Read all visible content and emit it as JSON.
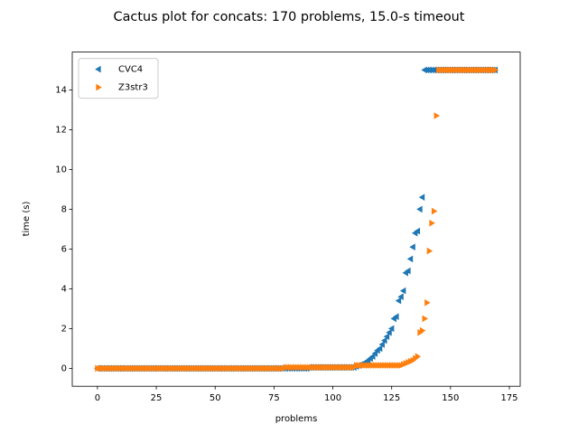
{
  "chart_data": {
    "type": "scatter",
    "title": "Cactus plot for concats: 170 problems, 15.0-s timeout",
    "x_label": "problems",
    "y_label": "time (s)",
    "x": [
      0,
      1,
      2,
      3,
      4,
      5,
      6,
      7,
      8,
      9,
      10,
      11,
      12,
      13,
      14,
      15,
      16,
      17,
      18,
      19,
      20,
      21,
      22,
      23,
      24,
      25,
      26,
      27,
      28,
      29,
      30,
      31,
      32,
      33,
      34,
      35,
      36,
      37,
      38,
      39,
      40,
      41,
      42,
      43,
      44,
      45,
      46,
      47,
      48,
      49,
      50,
      51,
      52,
      53,
      54,
      55,
      56,
      57,
      58,
      59,
      60,
      61,
      62,
      63,
      64,
      65,
      66,
      67,
      68,
      69,
      70,
      71,
      72,
      73,
      74,
      75,
      76,
      77,
      78,
      79,
      80,
      81,
      82,
      83,
      84,
      85,
      86,
      87,
      88,
      89,
      90,
      91,
      92,
      93,
      94,
      95,
      96,
      97,
      98,
      99,
      100,
      101,
      102,
      103,
      104,
      105,
      106,
      107,
      108,
      109,
      110,
      111,
      112,
      113,
      114,
      115,
      116,
      117,
      118,
      119,
      120,
      121,
      122,
      123,
      124,
      125,
      126,
      127,
      128,
      129,
      130,
      131,
      132,
      133,
      134,
      135,
      136,
      137,
      138,
      139,
      140,
      141,
      142,
      143,
      144,
      145,
      146,
      147,
      148,
      149,
      150,
      151,
      152,
      153,
      154,
      155,
      156,
      157,
      158,
      159,
      160,
      161,
      162,
      163,
      164,
      165,
      166,
      167,
      168,
      169
    ],
    "series": [
      {
        "name": "CVC4",
        "color": "#1f77b4",
        "marker": "<",
        "values": [
          0,
          0,
          0,
          0,
          0,
          0,
          0,
          0,
          0,
          0,
          0,
          0,
          0,
          0,
          0,
          0,
          0,
          0,
          0,
          0,
          0,
          0,
          0,
          0,
          0,
          0,
          0,
          0,
          0,
          0,
          0,
          0,
          0,
          0,
          0,
          0,
          0,
          0,
          0,
          0,
          0,
          0,
          0,
          0,
          0,
          0,
          0,
          0,
          0,
          0,
          0,
          0,
          0,
          0,
          0,
          0,
          0,
          0,
          0,
          0,
          0,
          0,
          0,
          0,
          0,
          0,
          0,
          0,
          0,
          0,
          0,
          0,
          0,
          0,
          0,
          0,
          0,
          0,
          0,
          0,
          0,
          0,
          0,
          0,
          0,
          0,
          0,
          0,
          0,
          0,
          0.05,
          0.05,
          0.05,
          0.05,
          0.05,
          0.05,
          0.05,
          0.05,
          0.05,
          0.05,
          0.05,
          0.05,
          0.05,
          0.05,
          0.05,
          0.05,
          0.05,
          0.05,
          0.05,
          0.05,
          0.1,
          0.15,
          0.2,
          0.25,
          0.3,
          0.4,
          0.5,
          0.6,
          0.75,
          0.9,
          1.0,
          1.2,
          1.4,
          1.6,
          1.8,
          2.0,
          2.5,
          2.6,
          3.4,
          3.6,
          3.9,
          4.8,
          4.9,
          5.5,
          6.1,
          6.8,
          6.9,
          8.0,
          8.6,
          15,
          15,
          15,
          15,
          15,
          15,
          15,
          15,
          15,
          15,
          15,
          15,
          15,
          15,
          15,
          15,
          15,
          15,
          15,
          15,
          15,
          15,
          15,
          15,
          15,
          15,
          15,
          15,
          15,
          15,
          15
        ]
      },
      {
        "name": "Z3str3",
        "color": "#ff7f0e",
        "marker": ">",
        "values": [
          0,
          0,
          0,
          0,
          0,
          0,
          0,
          0,
          0,
          0,
          0,
          0,
          0,
          0,
          0,
          0,
          0,
          0,
          0,
          0,
          0,
          0,
          0,
          0,
          0,
          0,
          0,
          0,
          0,
          0,
          0,
          0,
          0,
          0,
          0,
          0,
          0,
          0,
          0,
          0,
          0,
          0,
          0,
          0,
          0,
          0,
          0,
          0,
          0,
          0,
          0,
          0,
          0,
          0,
          0,
          0,
          0,
          0,
          0,
          0,
          0,
          0,
          0,
          0,
          0,
          0,
          0,
          0,
          0,
          0,
          0,
          0,
          0,
          0,
          0,
          0,
          0,
          0,
          0,
          0,
          0.05,
          0.05,
          0.05,
          0.05,
          0.05,
          0.05,
          0.05,
          0.05,
          0.05,
          0.05,
          0.05,
          0.05,
          0.05,
          0.05,
          0.05,
          0.05,
          0.05,
          0.05,
          0.05,
          0.05,
          0.05,
          0.05,
          0.05,
          0.05,
          0.05,
          0.05,
          0.05,
          0.05,
          0.05,
          0.05,
          0.15,
          0.15,
          0.15,
          0.15,
          0.15,
          0.15,
          0.15,
          0.15,
          0.15,
          0.15,
          0.15,
          0.15,
          0.15,
          0.15,
          0.15,
          0.15,
          0.15,
          0.15,
          0.15,
          0.15,
          0.2,
          0.25,
          0.3,
          0.35,
          0.4,
          0.5,
          0.6,
          1.8,
          1.9,
          2.5,
          3.3,
          5.9,
          7.3,
          7.9,
          12.7,
          15,
          15,
          15,
          15,
          15,
          15,
          15,
          15,
          15,
          15,
          15,
          15,
          15,
          15,
          15,
          15,
          15,
          15,
          15,
          15,
          15,
          15,
          15,
          15,
          15
        ]
      }
    ],
    "xlim": [
      -10.7,
      179.6
    ],
    "ylim": [
      -0.9,
      15.9
    ],
    "xticks": [
      0,
      25,
      50,
      75,
      100,
      125,
      150,
      175
    ],
    "yticks": [
      0,
      2,
      4,
      6,
      8,
      10,
      12,
      14
    ],
    "legend": "upper left"
  }
}
